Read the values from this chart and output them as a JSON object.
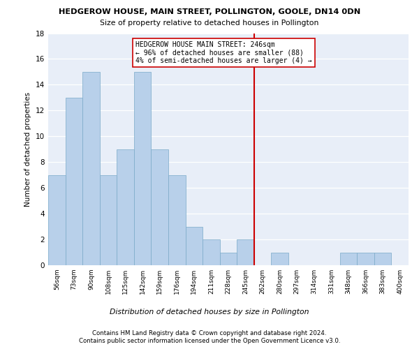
{
  "title": "HEDGEROW HOUSE, MAIN STREET, POLLINGTON, GOOLE, DN14 0DN",
  "subtitle": "Size of property relative to detached houses in Pollington",
  "xlabel": "Distribution of detached houses by size in Pollington",
  "ylabel": "Number of detached properties",
  "categories": [
    "56sqm",
    "73sqm",
    "90sqm",
    "108sqm",
    "125sqm",
    "142sqm",
    "159sqm",
    "176sqm",
    "194sqm",
    "211sqm",
    "228sqm",
    "245sqm",
    "262sqm",
    "280sqm",
    "297sqm",
    "314sqm",
    "331sqm",
    "348sqm",
    "366sqm",
    "383sqm",
    "400sqm"
  ],
  "values": [
    7,
    13,
    15,
    7,
    9,
    15,
    9,
    7,
    3,
    2,
    1,
    2,
    0,
    1,
    0,
    0,
    0,
    1,
    1,
    1,
    0
  ],
  "bar_color": "#b8d0ea",
  "bar_edge_color": "#7aaac8",
  "ylim": [
    0,
    18
  ],
  "yticks": [
    0,
    2,
    4,
    6,
    8,
    10,
    12,
    14,
    16,
    18
  ],
  "vline_x": 11.5,
  "vline_color": "#cc0000",
  "annotation_text": "HEDGEROW HOUSE MAIN STREET: 246sqm\n← 96% of detached houses are smaller (88)\n4% of semi-detached houses are larger (4) →",
  "bg_color": "#e8eef8",
  "grid_color": "#ffffff",
  "footer1": "Contains HM Land Registry data © Crown copyright and database right 2024.",
  "footer2": "Contains public sector information licensed under the Open Government Licence v3.0."
}
